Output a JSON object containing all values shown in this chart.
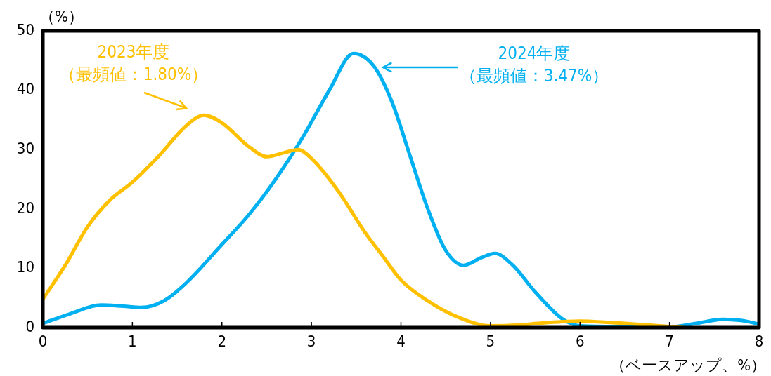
{
  "chart_data": {
    "type": "line",
    "ylabel": "（%）",
    "xlabel": "（ベースアップ、%）",
    "xlim": [
      0,
      8
    ],
    "xticks": [
      0,
      1,
      2,
      3,
      4,
      5,
      6,
      7,
      8
    ],
    "ylim": [
      0,
      50
    ],
    "yticks": [
      0,
      10,
      20,
      30,
      40,
      50
    ],
    "grid": false,
    "legend": false,
    "marker": "none",
    "line_style": "solid",
    "series": [
      {
        "color": "#ffc000",
        "x": [
          0,
          0.25,
          0.5,
          0.75,
          1,
          1.3,
          1.6,
          1.8,
          2,
          2.3,
          2.5,
          2.7,
          2.85,
          3,
          3.3,
          3.6,
          3.8,
          4,
          4.3,
          4.6,
          5,
          5.3,
          5.6,
          6,
          6.3,
          6.7,
          7.15
        ],
        "values": [
          4.8,
          10.5,
          17,
          21.5,
          24.5,
          29,
          34,
          35.8,
          34.5,
          30.5,
          28.8,
          29.5,
          30,
          28.5,
          23,
          16,
          12,
          8,
          4.5,
          2,
          0.3,
          0.4,
          0.8,
          1.1,
          0.9,
          0.5,
          0
        ]
      },
      {
        "color": "#00b0f0",
        "x": [
          0,
          0.3,
          0.65,
          0.9,
          1.1,
          1.35,
          1.6,
          2,
          2.3,
          2.6,
          2.9,
          3.2,
          3.47,
          3.7,
          3.9,
          4.1,
          4.3,
          4.5,
          4.7,
          4.9,
          5.05,
          5.25,
          5.5,
          5.8,
          6,
          7,
          7.3,
          7.6,
          7.8,
          8
        ],
        "values": [
          0.7,
          2.3,
          3.8,
          3.6,
          3.4,
          4.5,
          7.5,
          14,
          19,
          25,
          32,
          40,
          46.2,
          44,
          38,
          29,
          20,
          13,
          10.5,
          11.8,
          12.5,
          10.5,
          6,
          1.5,
          0.3,
          0.1,
          0.7,
          1.4,
          1.2,
          0.6
        ]
      }
    ],
    "annotations": [
      "2023年度",
      "（最頻値：1.80%）",
      "2024年度",
      "（最頻値：3.47%）"
    ]
  }
}
